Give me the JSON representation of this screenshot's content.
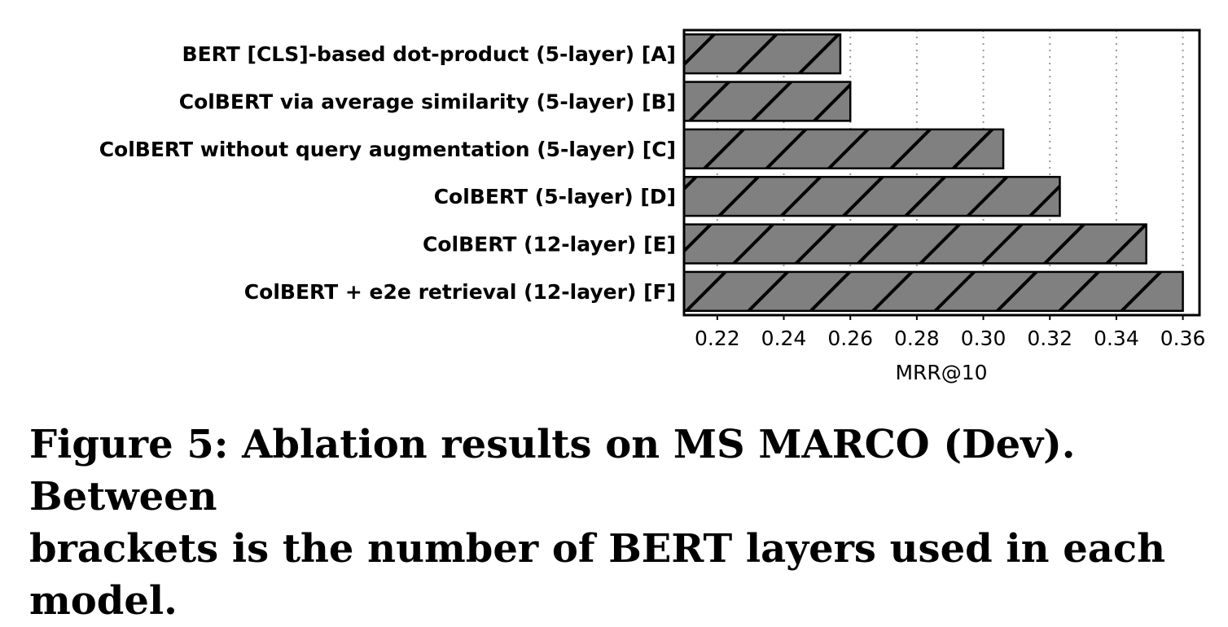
{
  "chart_data": {
    "type": "bar",
    "orientation": "horizontal",
    "categories": [
      "BERT [CLS]-based dot-product (5-layer)  [A]",
      "ColBERT via average similarity (5-layer)  [B]",
      "ColBERT without query augmentation (5-layer)  [C]",
      "ColBERT (5-layer)  [D]",
      "ColBERT (12-layer)  [E]",
      "ColBERT + e2e retrieval (12-layer)  [F]"
    ],
    "values": [
      0.257,
      0.26,
      0.306,
      0.323,
      0.349,
      0.36
    ],
    "xlabel": "MRR@10",
    "xlim": [
      0.21,
      0.365
    ],
    "xticks": [
      "0.22",
      "0.24",
      "0.26",
      "0.28",
      "0.30",
      "0.32",
      "0.34",
      "0.36"
    ],
    "grid": "vertical dotted",
    "bar_color": "#808080",
    "hatch": "/"
  },
  "caption": {
    "line1": "Figure 5:  Ablation results on MS MARCO (Dev).  Between",
    "line2": "brackets is the number of BERT layers used in each model."
  }
}
